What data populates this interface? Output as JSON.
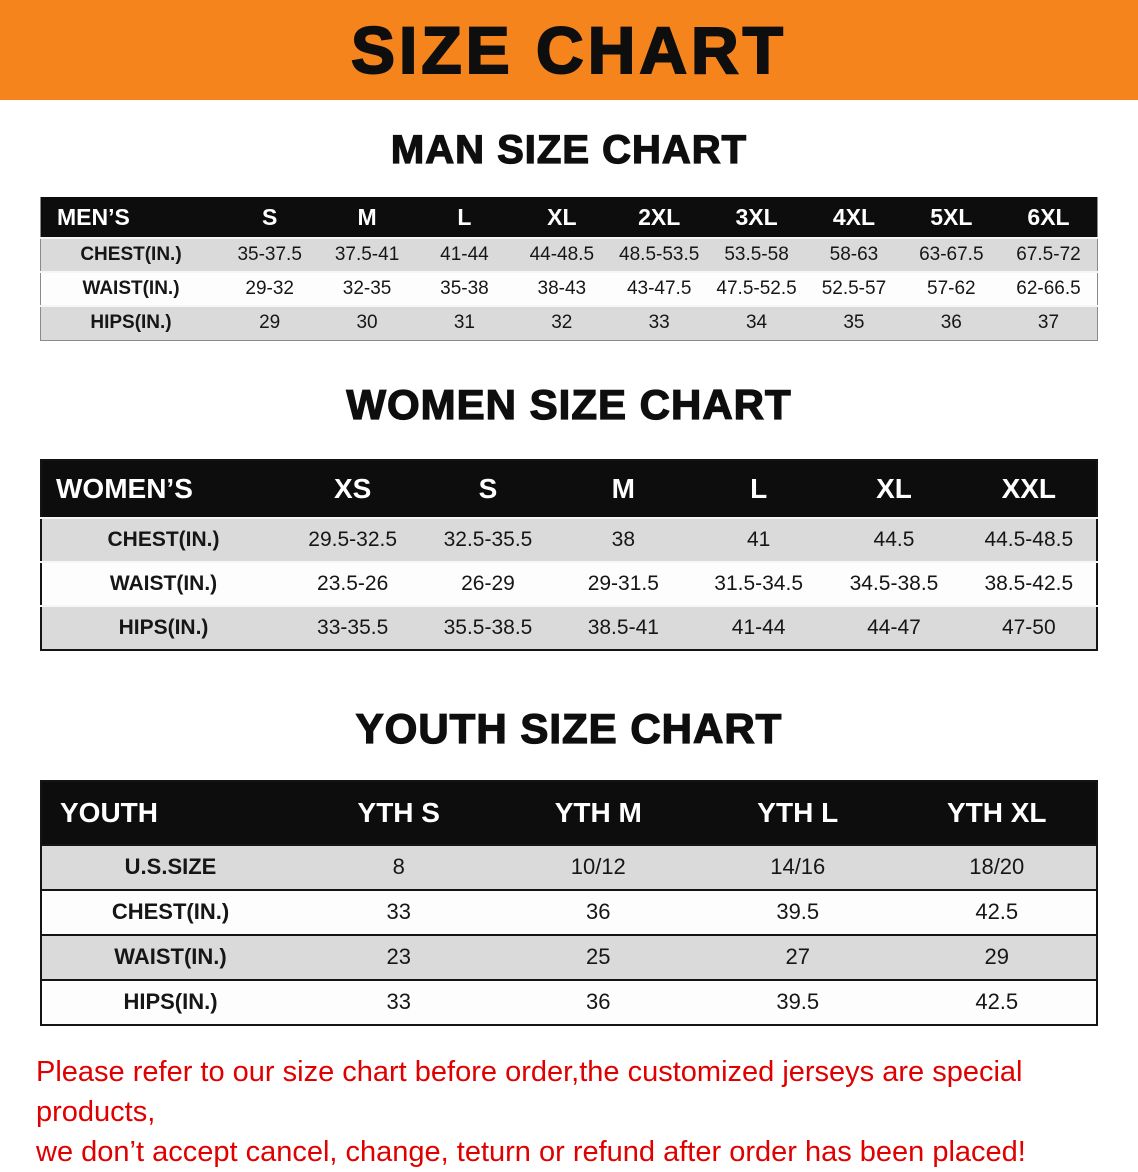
{
  "banner": {
    "title": "SIZE CHART",
    "bg_color": "#F6841C",
    "text_color": "#0E0E0E"
  },
  "sections": [
    {
      "id": "men",
      "heading": "MAN SIZE CHART",
      "table": {
        "header": [
          "MEN’S",
          "S",
          "M",
          "L",
          "XL",
          "2XL",
          "3XL",
          "4XL",
          "5XL",
          "6XL"
        ],
        "rows": [
          [
            "CHEST(IN.)",
            "35-37.5",
            "37.5-41",
            "41-44",
            "44-48.5",
            "48.5-53.5",
            "53.5-58",
            "58-63",
            "63-67.5",
            "67.5-72"
          ],
          [
            "WAIST(IN.)",
            "29-32",
            "32-35",
            "35-38",
            "38-43",
            "43-47.5",
            "47.5-52.5",
            "52.5-57",
            "57-62",
            "62-66.5"
          ],
          [
            "HIPS(IN.)",
            "29",
            "30",
            "31",
            "32",
            "33",
            "34",
            "35",
            "36",
            "37"
          ]
        ]
      }
    },
    {
      "id": "women",
      "heading": "WOMEN SIZE CHART",
      "table": {
        "header": [
          "WOMEN’S",
          "XS",
          "S",
          "M",
          "L",
          "XL",
          "XXL"
        ],
        "rows": [
          [
            "CHEST(IN.)",
            "29.5-32.5",
            "32.5-35.5",
            "38",
            "41",
            "44.5",
            "44.5-48.5"
          ],
          [
            "WAIST(IN.)",
            "23.5-26",
            "26-29",
            "29-31.5",
            "31.5-34.5",
            "34.5-38.5",
            "38.5-42.5"
          ],
          [
            "HIPS(IN.)",
            "33-35.5",
            "35.5-38.5",
            "38.5-41",
            "41-44",
            "44-47",
            "47-50"
          ]
        ]
      }
    },
    {
      "id": "youth",
      "heading": "YOUTH SIZE CHART",
      "table": {
        "header": [
          "YOUTH",
          "YTH S",
          "YTH M",
          "YTH L",
          "YTH XL"
        ],
        "rows": [
          [
            "U.S.SIZE",
            "8",
            "10/12",
            "14/16",
            "18/20"
          ],
          [
            "CHEST(IN.)",
            "33",
            "36",
            "39.5",
            "42.5"
          ],
          [
            "WAIST(IN.)",
            "23",
            "25",
            "27",
            "29"
          ],
          [
            "HIPS(IN.)",
            "33",
            "36",
            "39.5",
            "42.5"
          ]
        ]
      }
    }
  ],
  "disclaimer": {
    "color": "#E00000",
    "line1": "Please refer to our size chart before order,the customized jerseys are special products,",
    "line2": "we don’t accept cancel, change, teturn or refund after order has been placed!"
  }
}
